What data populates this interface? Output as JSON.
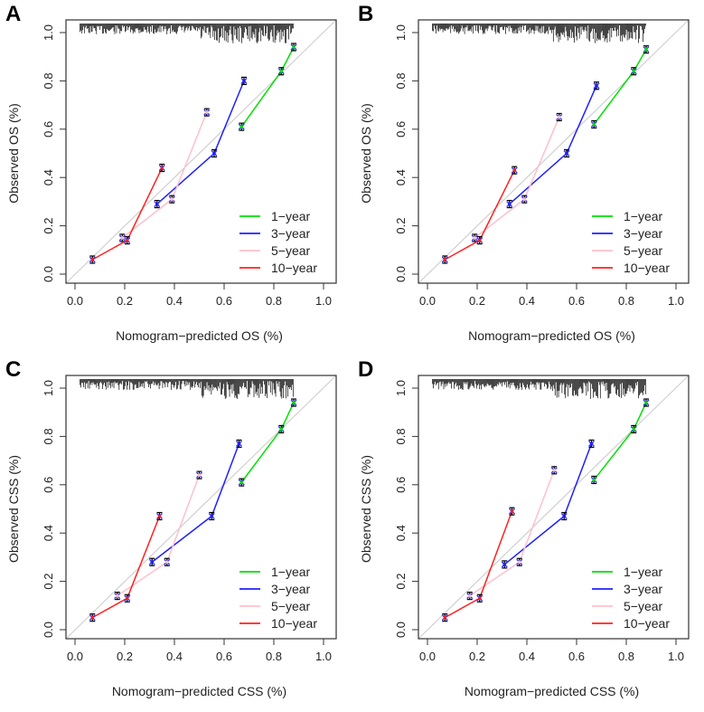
{
  "chart_data": [
    {
      "type": "line",
      "panel_label": "A",
      "xlabel": "Nomogram−predicted OS (%)",
      "ylabel": "Observed OS (%)",
      "xlim": [
        0,
        1
      ],
      "ylim": [
        0,
        1
      ],
      "xticks": [
        "0.0",
        "0.2",
        "0.4",
        "0.6",
        "0.8",
        "1.0"
      ],
      "yticks": [
        "0.0",
        "0.2",
        "0.4",
        "0.6",
        "0.8",
        "1.0"
      ],
      "legend_position": "bottom-right",
      "series": [
        {
          "name": "1−year",
          "color": "#00e000",
          "x": [
            0.67,
            0.83,
            0.88
          ],
          "y": [
            0.61,
            0.84,
            0.94
          ]
        },
        {
          "name": "3−year",
          "color": "#2020ff",
          "x": [
            0.33,
            0.56,
            0.68
          ],
          "y": [
            0.29,
            0.5,
            0.8
          ]
        },
        {
          "name": "5−year",
          "color": "#ffc0cb",
          "x": [
            0.19,
            0.39,
            0.53
          ],
          "y": [
            0.15,
            0.31,
            0.67
          ]
        },
        {
          "name": "10−year",
          "color": "#ff2020",
          "x": [
            0.07,
            0.21,
            0.35
          ],
          "y": [
            0.06,
            0.14,
            0.44
          ]
        }
      ]
    },
    {
      "type": "line",
      "panel_label": "B",
      "xlabel": "Nomogram−predicted OS (%)",
      "ylabel": "Observed OS (%)",
      "xlim": [
        0,
        1
      ],
      "ylim": [
        0,
        1
      ],
      "xticks": [
        "0.0",
        "0.2",
        "0.4",
        "0.6",
        "0.8",
        "1.0"
      ],
      "yticks": [
        "0.0",
        "0.2",
        "0.4",
        "0.6",
        "0.8",
        "1.0"
      ],
      "legend_position": "bottom-right",
      "series": [
        {
          "name": "1−year",
          "color": "#00e000",
          "x": [
            0.67,
            0.83,
            0.88
          ],
          "y": [
            0.62,
            0.84,
            0.93
          ]
        },
        {
          "name": "3−year",
          "color": "#2020ff",
          "x": [
            0.33,
            0.56,
            0.68
          ],
          "y": [
            0.29,
            0.5,
            0.78
          ]
        },
        {
          "name": "5−year",
          "color": "#ffc0cb",
          "x": [
            0.19,
            0.39,
            0.53
          ],
          "y": [
            0.15,
            0.31,
            0.65
          ]
        },
        {
          "name": "10−year",
          "color": "#ff2020",
          "x": [
            0.07,
            0.21,
            0.35
          ],
          "y": [
            0.06,
            0.14,
            0.43
          ]
        }
      ]
    },
    {
      "type": "line",
      "panel_label": "C",
      "xlabel": "Nomogram−predicted CSS (%)",
      "ylabel": "Observed CSS (%)",
      "xlim": [
        0,
        1
      ],
      "ylim": [
        0,
        1
      ],
      "xticks": [
        "0.0",
        "0.2",
        "0.4",
        "0.6",
        "0.8",
        "1.0"
      ],
      "yticks": [
        "0.0",
        "0.2",
        "0.4",
        "0.6",
        "0.8",
        "1.0"
      ],
      "legend_position": "bottom-right",
      "series": [
        {
          "name": "1−year",
          "color": "#00e000",
          "x": [
            0.67,
            0.83,
            0.88
          ],
          "y": [
            0.61,
            0.83,
            0.94
          ]
        },
        {
          "name": "3−year",
          "color": "#2020ff",
          "x": [
            0.31,
            0.55,
            0.66
          ],
          "y": [
            0.28,
            0.47,
            0.77
          ]
        },
        {
          "name": "5−year",
          "color": "#ffc0cb",
          "x": [
            0.17,
            0.37,
            0.5
          ],
          "y": [
            0.14,
            0.28,
            0.64
          ]
        },
        {
          "name": "10−year",
          "color": "#ff2020",
          "x": [
            0.07,
            0.21,
            0.34
          ],
          "y": [
            0.05,
            0.13,
            0.47
          ]
        }
      ]
    },
    {
      "type": "line",
      "panel_label": "D",
      "xlabel": "Nomogram−predicted CSS (%)",
      "ylabel": "Observed CSS (%)",
      "xlim": [
        0,
        1
      ],
      "ylim": [
        0,
        1
      ],
      "xticks": [
        "0.0",
        "0.2",
        "0.4",
        "0.6",
        "0.8",
        "1.0"
      ],
      "yticks": [
        "0.0",
        "0.2",
        "0.4",
        "0.6",
        "0.8",
        "1.0"
      ],
      "legend_position": "bottom-right",
      "series": [
        {
          "name": "1−year",
          "color": "#00e000",
          "x": [
            0.67,
            0.83,
            0.88
          ],
          "y": [
            0.62,
            0.83,
            0.94
          ]
        },
        {
          "name": "3−year",
          "color": "#2020ff",
          "x": [
            0.31,
            0.55,
            0.66
          ],
          "y": [
            0.27,
            0.47,
            0.77
          ]
        },
        {
          "name": "5−year",
          "color": "#ffc0cb",
          "x": [
            0.17,
            0.37,
            0.51
          ],
          "y": [
            0.14,
            0.28,
            0.66
          ]
        },
        {
          "name": "10−year",
          "color": "#ff2020",
          "x": [
            0.07,
            0.21,
            0.34
          ],
          "y": [
            0.05,
            0.13,
            0.49
          ]
        }
      ]
    }
  ]
}
